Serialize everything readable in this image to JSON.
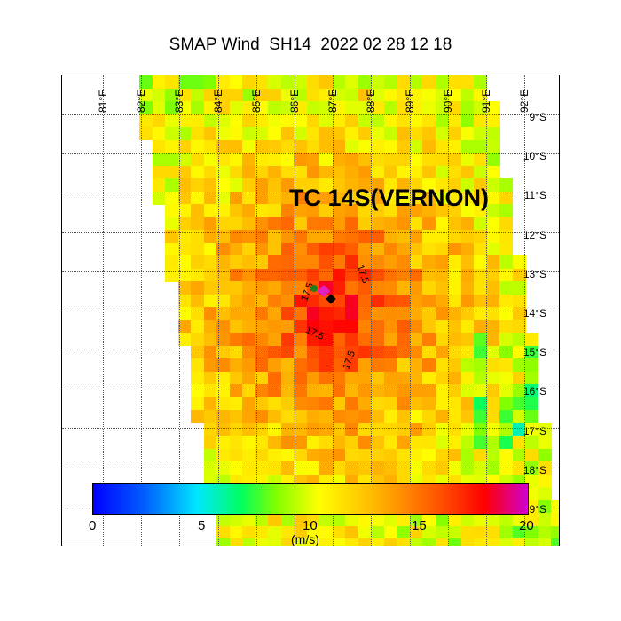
{
  "title": "SMAP Wind  SH14  2022 02 28 12 18",
  "storm_label": "TC 14S(VERNON)",
  "chart_data": {
    "type": "heatmap",
    "title": "SMAP Wind  SH14  2022 02 28 12 18",
    "lon_ticks": [
      "81°E",
      "82°E",
      "83°E",
      "84°E",
      "85°E",
      "86°E",
      "87°E",
      "88°E",
      "89°E",
      "90°E",
      "91°E",
      "92°E"
    ],
    "lat_ticks": [
      "9°S",
      "10°S",
      "11°S",
      "12°S",
      "13°S",
      "14°S",
      "15°S",
      "16°S",
      "17°S",
      "18°S",
      "9°S"
    ],
    "center": {
      "lon": 87.0,
      "lat": -13.8
    },
    "max_wind": 18,
    "contour_level": "17.5",
    "colorbar": {
      "ticks": [
        "0",
        "5",
        "10",
        "15",
        "20"
      ],
      "range": [
        0,
        20
      ],
      "units": "(m/s)"
    }
  }
}
